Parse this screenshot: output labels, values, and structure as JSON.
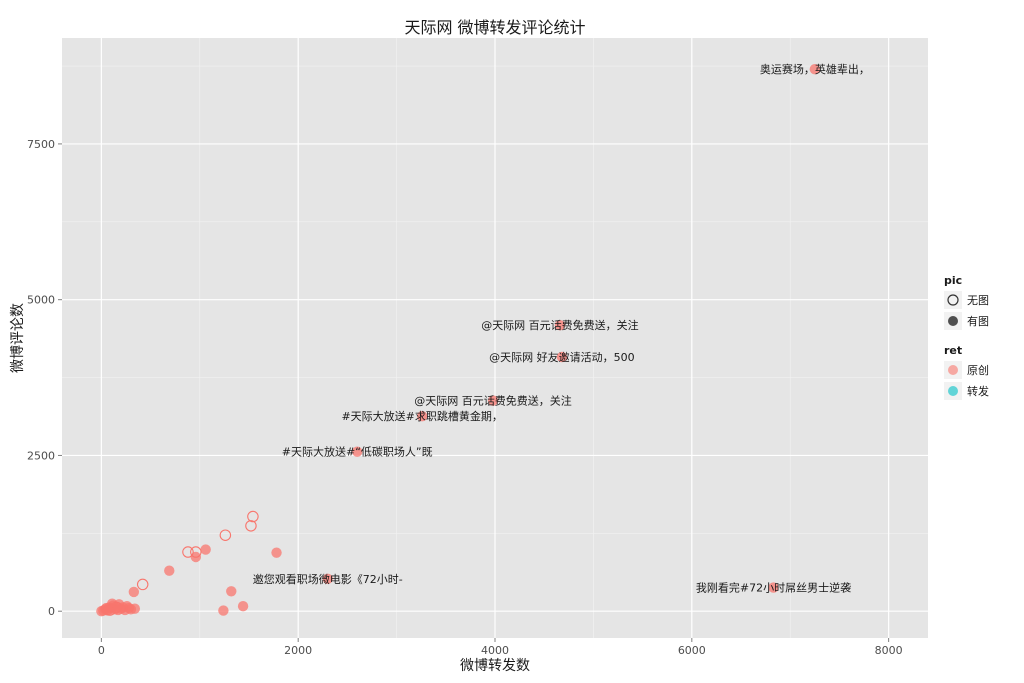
{
  "chart_data": {
    "type": "scatter",
    "title": "天际网 微博转发评论统计",
    "xlabel": "微博转发数",
    "ylabel": "微博评论数",
    "xlim": [
      -400,
      8400
    ],
    "ylim": [
      -430,
      9200
    ],
    "xticks": [
      0,
      2000,
      4000,
      6000,
      8000
    ],
    "yticks": [
      0,
      2500,
      5000,
      7500
    ],
    "xtick_labels": [
      "0",
      "2000",
      "4000",
      "6000",
      "8000"
    ],
    "ytick_labels": [
      "0",
      "2500",
      "5000",
      "7500"
    ],
    "grid": true,
    "point_color": "#F8766D",
    "colors": {
      "原创": "#F8766D",
      "转发": "#00BFC4"
    },
    "legend": {
      "position": "right",
      "groups": [
        {
          "title": "pic",
          "items": [
            {
              "label": "无图",
              "shape": "open",
              "color": "#333333"
            },
            {
              "label": "有图",
              "shape": "filled",
              "color": "#333333"
            }
          ]
        },
        {
          "title": "ret",
          "items": [
            {
              "label": "原创",
              "shape": "filled",
              "color": "#F8766D"
            },
            {
              "label": "转发",
              "shape": "filled",
              "color": "#00BFC4"
            }
          ]
        }
      ]
    },
    "series": [
      {
        "name": "无图",
        "filled": false,
        "points": [
          [
            420,
            430
          ],
          [
            880,
            950
          ],
          [
            960,
            950
          ],
          [
            1260,
            1220
          ],
          [
            1520,
            1370
          ],
          [
            1540,
            1520
          ],
          [
            90,
            20
          ],
          [
            150,
            60
          ]
        ]
      },
      {
        "name": "有图",
        "filled": true,
        "points": [
          [
            0,
            0
          ],
          [
            20,
            10
          ],
          [
            40,
            30
          ],
          [
            60,
            20
          ],
          [
            80,
            60
          ],
          [
            100,
            40
          ],
          [
            120,
            90
          ],
          [
            140,
            30
          ],
          [
            160,
            70
          ],
          [
            180,
            110
          ],
          [
            200,
            40
          ],
          [
            220,
            60
          ],
          [
            240,
            20
          ],
          [
            260,
            80
          ],
          [
            280,
            50
          ],
          [
            300,
            30
          ],
          [
            330,
            310
          ],
          [
            340,
            40
          ],
          [
            110,
            120
          ],
          [
            170,
            20
          ],
          [
            50,
            50
          ],
          [
            70,
            10
          ],
          [
            690,
            650
          ],
          [
            960,
            870
          ],
          [
            1060,
            990
          ],
          [
            1240,
            10
          ],
          [
            1320,
            320
          ],
          [
            1440,
            80
          ],
          [
            1780,
            940
          ],
          [
            2300,
            520
          ],
          [
            2600,
            2560
          ],
          [
            3260,
            3130
          ],
          [
            3980,
            3380
          ],
          [
            4660,
            4590
          ],
          [
            4680,
            4080
          ],
          [
            6830,
            380
          ],
          [
            7250,
            8700
          ]
        ]
      }
    ],
    "annotations": [
      {
        "x": 7250,
        "y": 8700,
        "text": "奥运赛场，英雄辈出，"
      },
      {
        "x": 4660,
        "y": 4590,
        "text": "@天际网 百元话费免费送，关注"
      },
      {
        "x": 4680,
        "y": 4080,
        "text": "@天际网 好友邀请活动，500"
      },
      {
        "x": 3980,
        "y": 3380,
        "text": "@天际网 百元话费免费送，关注"
      },
      {
        "x": 3260,
        "y": 3130,
        "text": "#天际大放送#求职跳槽黄金期，"
      },
      {
        "x": 2600,
        "y": 2560,
        "text": "#天际大放送#“低碳职场人”既"
      },
      {
        "x": 2300,
        "y": 520,
        "text": "邀您观看职场微电影《72小时-"
      },
      {
        "x": 6830,
        "y": 380,
        "text": "我刚看完#72小时屌丝男士逆袭"
      }
    ]
  }
}
